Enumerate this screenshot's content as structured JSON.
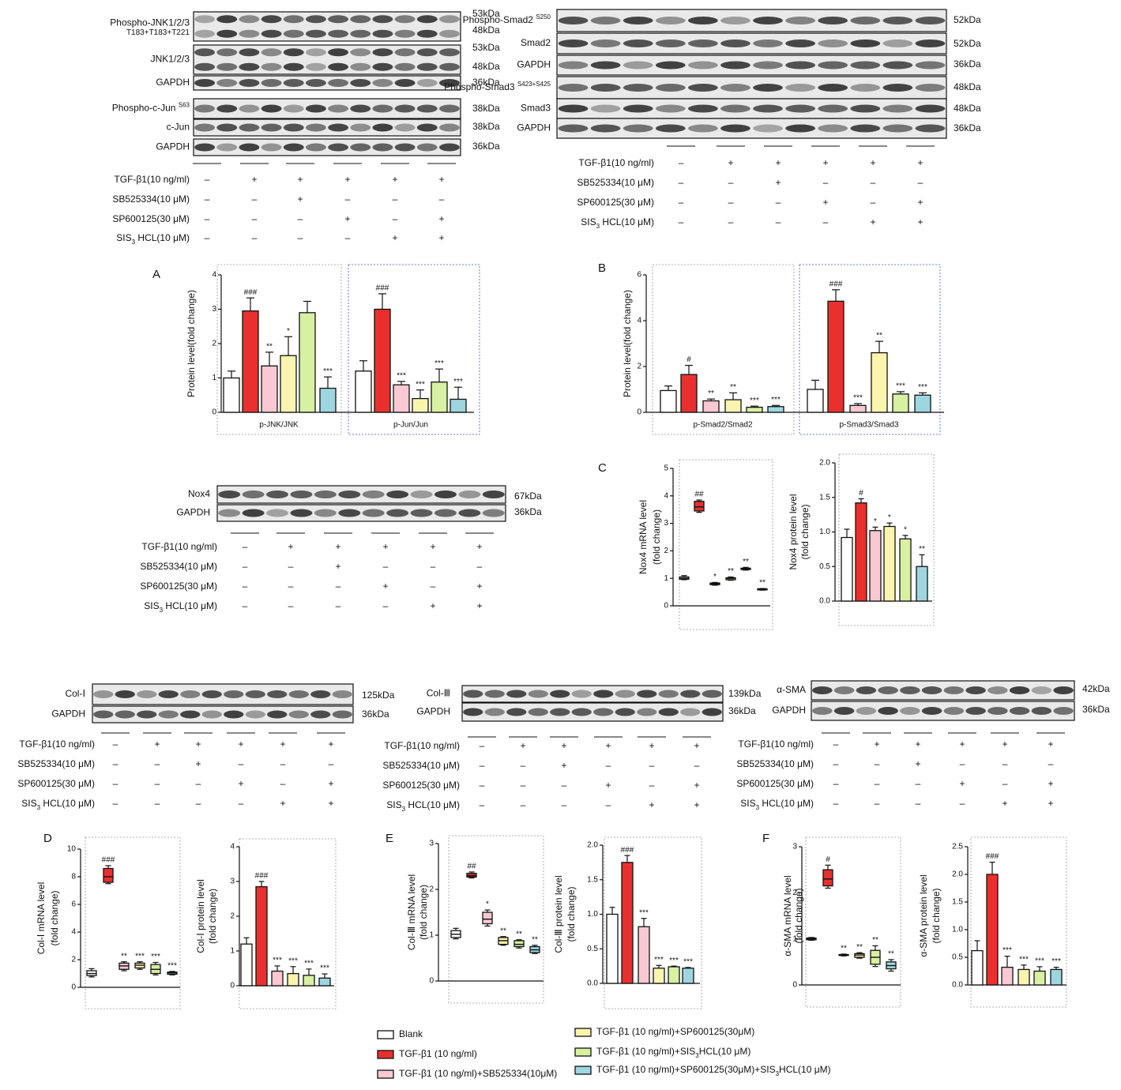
{
  "blots": [
    {
      "rows": [
        {
          "label": {
            "text": "Phospho-JNK1/2/3",
            "line2": "T183+T183+T221"
          },
          "kda": [
            "53kDa",
            "48kDa"
          ]
        },
        {
          "label": "JNK1/2/3",
          "kda": [
            "53kDa",
            "48kDa"
          ]
        },
        {
          "label": "GAPDH",
          "kda": [
            "36kDa"
          ]
        },
        {
          "label": {
            "text": "Phospho-c-Jun ",
            "sup": "S63"
          },
          "kda": [
            "38kDa"
          ]
        },
        {
          "label": "c-Jun",
          "kda": [
            "38kDa"
          ]
        },
        {
          "label": "GAPDH",
          "kda": [
            "36kDa"
          ]
        }
      ],
      "treatments": [
        {
          "label": "TGF-β1(10 ng/ml)",
          "signs": [
            "–",
            "+",
            "+",
            "+",
            "+",
            "+"
          ]
        },
        {
          "label": "SB525334(10 μM)",
          "signs": [
            "–",
            "–",
            "+",
            "–",
            "–",
            "–"
          ]
        },
        {
          "label": "SP600125(30 μM)",
          "signs": [
            "–",
            "–",
            "–",
            "+",
            "–",
            "+"
          ]
        },
        {
          "label": {
            "text": "SIS",
            "sub": "3",
            "tail": " HCL(10 μM)"
          },
          "signs": [
            "–",
            "–",
            "–",
            "–",
            "+",
            "+"
          ]
        }
      ]
    },
    {
      "rows": [
        {
          "label": {
            "text": "Phospho-Smad2 ",
            "sup": "S250"
          },
          "kda": [
            "52kDa"
          ]
        },
        {
          "label": "Smad2",
          "kda": [
            "52kDa"
          ]
        },
        {
          "label": "GAPDH",
          "kda": [
            "36kDa"
          ]
        },
        {
          "label": {
            "text": "Phospho-Smad3 ",
            "sup": "S423+S425"
          },
          "kda": [
            "48kDa"
          ]
        },
        {
          "label": "Smad3",
          "kda": [
            "48kDa"
          ]
        },
        {
          "label": "GAPDH",
          "kda": [
            "36kDa"
          ]
        }
      ],
      "treatments": [
        {
          "label": "TGF-β1(10 ng/ml)",
          "signs": [
            "–",
            "+",
            "+",
            "+",
            "+",
            "+"
          ]
        },
        {
          "label": "SB525334(10 μM)",
          "signs": [
            "–",
            "–",
            "+",
            "–",
            "–",
            "–"
          ]
        },
        {
          "label": "SP600125(30 μM)",
          "signs": [
            "–",
            "–",
            "–",
            "+",
            "–",
            "+"
          ]
        },
        {
          "label": {
            "text": "SIS",
            "sub": "3",
            "tail": " HCL(10 μM)"
          },
          "signs": [
            "–",
            "–",
            "–",
            "–",
            "+",
            "+"
          ]
        }
      ]
    },
    {
      "rows": [
        {
          "label": "Nox4",
          "kda": [
            "67kDa"
          ]
        },
        {
          "label": "GAPDH",
          "kda": [
            "36kDa"
          ]
        }
      ],
      "treatments": [
        {
          "label": "TGF-β1(10 ng/ml)",
          "signs": [
            "–",
            "+",
            "+",
            "+",
            "+",
            "+"
          ]
        },
        {
          "label": "SB525334(10 μM)",
          "signs": [
            "–",
            "–",
            "+",
            "–",
            "–",
            "–"
          ]
        },
        {
          "label": "SP600125(30 μM)",
          "signs": [
            "–",
            "–",
            "–",
            "+",
            "–",
            "+"
          ]
        },
        {
          "label": {
            "text": "SIS",
            "sub": "3",
            "tail": " HCL(10 μM)"
          },
          "signs": [
            "–",
            "–",
            "–",
            "–",
            "+",
            "+"
          ]
        }
      ]
    },
    {
      "rows": [
        {
          "label": "Col-Ⅰ",
          "kda": [
            "125kDa"
          ]
        },
        {
          "label": "GAPDH",
          "kda": [
            "36kDa"
          ]
        }
      ],
      "treatments": [
        {
          "label": "TGF-β1(10 ng/ml)",
          "signs": [
            "–",
            "+",
            "+",
            "+",
            "+",
            "+"
          ]
        },
        {
          "label": "SB525334(10 μM)",
          "signs": [
            "–",
            "–",
            "+",
            "–",
            "–",
            "–"
          ]
        },
        {
          "label": "SP600125(30 μM)",
          "signs": [
            "–",
            "–",
            "–",
            "+",
            "–",
            "+"
          ]
        },
        {
          "label": {
            "text": "SIS",
            "sub": "3",
            "tail": " HCL(10 μM)"
          },
          "signs": [
            "–",
            "–",
            "–",
            "–",
            "+",
            "+"
          ]
        }
      ]
    },
    {
      "rows": [
        {
          "label": "Col-Ⅲ",
          "kda": [
            "139kDa"
          ]
        },
        {
          "label": "GAPDH",
          "kda": [
            "36kDa"
          ]
        }
      ],
      "treatments": [
        {
          "label": "TGF-β1(10 ng/ml)",
          "signs": [
            "–",
            "+",
            "+",
            "+",
            "+",
            "+"
          ]
        },
        {
          "label": "SB525334(10 μM)",
          "signs": [
            "–",
            "–",
            "+",
            "–",
            "–",
            "–"
          ]
        },
        {
          "label": "SP600125(30 μM)",
          "signs": [
            "–",
            "–",
            "–",
            "+",
            "–",
            "+"
          ]
        },
        {
          "label": {
            "text": "SIS",
            "sub": "3",
            "tail": " HCL(10 μM)"
          },
          "signs": [
            "–",
            "–",
            "–",
            "–",
            "+",
            "+"
          ]
        }
      ]
    },
    {
      "rows": [
        {
          "label": "α-SMA",
          "kda": [
            "42kDa"
          ]
        },
        {
          "label": "GAPDH",
          "kda": [
            "36kDa"
          ]
        }
      ],
      "treatments": [
        {
          "label": "TGF-β1(10 ng/ml)",
          "signs": [
            "–",
            "+",
            "+",
            "+",
            "+",
            "+"
          ]
        },
        {
          "label": "SB525334(10 μM)",
          "signs": [
            "–",
            "–",
            "+",
            "–",
            "–",
            "–"
          ]
        },
        {
          "label": "SP600125(30 μM)",
          "signs": [
            "–",
            "–",
            "–",
            "+",
            "–",
            "+"
          ]
        },
        {
          "label": {
            "text": "SIS",
            "sub": "3",
            "tail": " HCL(10 μM)"
          },
          "signs": [
            "–",
            "–",
            "–",
            "–",
            "+",
            "+"
          ]
        }
      ]
    }
  ],
  "chart_data": [
    {
      "type": "bar",
      "panel": "A",
      "ylabel": "Protein level(fold change)",
      "ylim": [
        0,
        4
      ],
      "yticks": [
        0,
        1,
        2,
        3,
        4
      ],
      "groups": [
        {
          "label": "p-JNK/JNK",
          "values": [
            1.0,
            2.95,
            1.35,
            1.65,
            2.9,
            0.7
          ],
          "errors": [
            0.2,
            0.38,
            0.4,
            0.55,
            0.33,
            0.33
          ],
          "annotations": [
            null,
            "###",
            "**",
            "*",
            null,
            "***"
          ]
        },
        {
          "label": "p-Jun/Jun",
          "values": [
            1.2,
            3.0,
            0.8,
            0.4,
            0.88,
            0.38
          ],
          "errors": [
            0.3,
            0.45,
            0.1,
            0.25,
            0.38,
            0.35
          ],
          "annotations": [
            null,
            "###",
            "***",
            "***",
            "***",
            "***"
          ]
        }
      ]
    },
    {
      "type": "bar",
      "panel": "B",
      "ylabel": "Protein level(fold change)",
      "ylim": [
        0,
        6
      ],
      "yticks": [
        0,
        2,
        4,
        6
      ],
      "groups": [
        {
          "label": "p-Smad2/Smad2",
          "values": [
            0.95,
            1.65,
            0.5,
            0.55,
            0.22,
            0.25
          ],
          "errors": [
            0.2,
            0.4,
            0.08,
            0.3,
            0.05,
            0.05
          ],
          "annotations": [
            null,
            "#",
            "**",
            "**",
            "***",
            "***"
          ]
        },
        {
          "label": "p-Smad3/Smad3",
          "values": [
            1.0,
            4.85,
            0.3,
            2.6,
            0.8,
            0.75
          ],
          "errors": [
            0.4,
            0.5,
            0.08,
            0.5,
            0.1,
            0.1
          ],
          "annotations": [
            null,
            "###",
            "***",
            "**",
            "***",
            "***"
          ]
        }
      ]
    },
    {
      "type": "box",
      "panel": "C",
      "ylabel": [
        "Nox4 mRNA level",
        "(fold change)"
      ],
      "ylim": [
        0,
        5
      ],
      "yticks": [
        0,
        1,
        2,
        3,
        4,
        5
      ],
      "groups": [
        {
          "low": [
            0.95,
            3.4,
            0.75,
            0.93,
            1.3,
            0.57
          ],
          "q1": [
            0.97,
            3.45,
            0.77,
            0.95,
            1.32,
            0.58
          ],
          "median": [
            1.0,
            3.6,
            0.8,
            1.0,
            1.35,
            0.6
          ],
          "q3": [
            1.05,
            3.8,
            0.83,
            1.02,
            1.37,
            0.62
          ],
          "high": [
            1.1,
            3.85,
            0.85,
            1.05,
            1.4,
            0.63
          ],
          "annotations": [
            null,
            "##",
            "*",
            "**",
            "**",
            "**"
          ]
        }
      ]
    },
    {
      "type": "bar",
      "ylabel": [
        "Nox4 protein level",
        "(fold change)"
      ],
      "ylim": [
        0,
        2
      ],
      "yticks": [
        {
          "value": 0,
          "label": "0.0"
        },
        0.5,
        {
          "value": 1,
          "label": "1.0"
        },
        1.5,
        {
          "value": 2,
          "label": "2.0"
        }
      ],
      "groups": [
        {
          "values": [
            0.92,
            1.42,
            1.02,
            1.08,
            0.9,
            0.5
          ],
          "errors": [
            0.12,
            0.06,
            0.05,
            0.05,
            0.05,
            0.17
          ],
          "annotations": [
            null,
            "#",
            "*",
            "*",
            "*",
            "**"
          ]
        }
      ]
    },
    {
      "type": "box",
      "panel": "D",
      "ylabel": [
        "Col-Ⅰ mRNA level",
        "(fold change)"
      ],
      "ylim": [
        0,
        10
      ],
      "yticks": [
        0,
        2,
        4,
        6,
        8,
        10
      ],
      "groups": [
        {
          "low": [
            0.75,
            7.5,
            1.2,
            1.3,
            0.9,
            0.9
          ],
          "q1": [
            0.85,
            7.6,
            1.3,
            1.4,
            1.0,
            0.95
          ],
          "median": [
            1.0,
            8.0,
            1.55,
            1.6,
            1.3,
            1.05
          ],
          "q3": [
            1.2,
            8.6,
            1.75,
            1.75,
            1.65,
            1.1
          ],
          "high": [
            1.35,
            8.8,
            1.85,
            1.85,
            1.8,
            1.15
          ],
          "annotations": [
            null,
            "###",
            "**",
            "***",
            "***",
            "***"
          ]
        }
      ]
    },
    {
      "type": "bar",
      "ylabel": [
        "Col-Ⅰ protein level",
        "(fold change)"
      ],
      "ylim": [
        0,
        4
      ],
      "yticks": [
        0,
        1,
        2,
        3,
        4
      ],
      "groups": [
        {
          "values": [
            1.2,
            2.85,
            0.42,
            0.35,
            0.3,
            0.22
          ],
          "errors": [
            0.18,
            0.15,
            0.15,
            0.2,
            0.18,
            0.12
          ],
          "annotations": [
            null,
            "###",
            "***",
            "***",
            "***",
            "***"
          ]
        }
      ]
    },
    {
      "type": "box",
      "panel": "E",
      "ylabel": [
        "Col-Ⅲ mRNA level",
        "(fold change)"
      ],
      "ylim": [
        0,
        3
      ],
      "yticks": [
        0,
        1,
        2,
        3
      ],
      "groups": [
        {
          "low": [
            0.92,
            2.25,
            1.2,
            0.78,
            0.72,
            0.6
          ],
          "q1": [
            0.95,
            2.27,
            1.25,
            0.8,
            0.75,
            0.62
          ],
          "median": [
            1.02,
            2.3,
            1.35,
            0.88,
            0.8,
            0.68
          ],
          "q3": [
            1.1,
            2.35,
            1.5,
            0.95,
            0.88,
            0.75
          ],
          "high": [
            1.15,
            2.38,
            1.55,
            0.97,
            0.9,
            0.78
          ],
          "annotations": [
            null,
            "##",
            "*",
            "**",
            "**",
            "**"
          ]
        }
      ]
    },
    {
      "type": "bar",
      "ylabel": [
        "Col-Ⅲ protein level",
        "(fold change)"
      ],
      "ylim": [
        0,
        2
      ],
      "yticks": [
        {
          "value": 0,
          "label": "0.0"
        },
        0.5,
        {
          "value": 1,
          "label": "1.0"
        },
        1.5,
        {
          "value": 2,
          "label": "2.0"
        }
      ],
      "groups": [
        {
          "values": [
            1.0,
            1.75,
            0.82,
            0.22,
            0.24,
            0.22
          ],
          "errors": [
            0.1,
            0.1,
            0.12,
            0.04,
            0.01,
            0.01
          ],
          "annotations": [
            null,
            "###",
            "***",
            "***",
            "***",
            "***"
          ]
        }
      ]
    },
    {
      "type": "box",
      "panel": "F",
      "ylabel": [
        "α-SMA mRNA level",
        "(fold change)"
      ],
      "ylim": [
        0,
        3
      ],
      "yticks": [
        0,
        1,
        2,
        3
      ],
      "groups": [
        {
          "low": [
            0.97,
            2.1,
            0.63,
            0.58,
            0.4,
            0.3
          ],
          "q1": [
            0.98,
            2.15,
            0.64,
            0.6,
            0.45,
            0.35
          ],
          "median": [
            1.0,
            2.3,
            0.65,
            0.65,
            0.6,
            0.42
          ],
          "q3": [
            1.02,
            2.5,
            0.66,
            0.68,
            0.75,
            0.5
          ],
          "high": [
            1.03,
            2.6,
            0.67,
            0.7,
            0.85,
            0.55
          ],
          "annotations": [
            null,
            "#",
            "**",
            "**",
            "**",
            "**"
          ]
        }
      ]
    },
    {
      "type": "bar",
      "ylabel": [
        "α-SMA protein level",
        "(fold change)"
      ],
      "ylim": [
        0,
        2.5
      ],
      "yticks": [
        {
          "value": 0,
          "label": "0.0"
        },
        0.5,
        {
          "value": 1,
          "label": "1.0"
        },
        1.5,
        {
          "value": 2,
          "label": "2.0"
        },
        2.5
      ],
      "groups": [
        {
          "values": [
            0.62,
            2.0,
            0.32,
            0.28,
            0.25,
            0.28
          ],
          "errors": [
            0.18,
            0.22,
            0.2,
            0.08,
            0.08,
            0.04
          ],
          "annotations": [
            null,
            "###",
            "***",
            "***",
            "***",
            "***"
          ]
        }
      ]
    }
  ],
  "legend": [
    {
      "name": "Blank",
      "color": "#ffffff"
    },
    {
      "name": "TGF-β1 (10 ng/ml)",
      "color": "#e8302e"
    },
    {
      "name": "TGF-β1 (10 ng/ml)+SB525334(10μM)",
      "color": "#f9c8d2"
    },
    {
      "name": "TGF-β1 (10 ng/ml)+SP600125(30μM)",
      "color": "#fbf4ae"
    },
    {
      "name": {
        "text": "TGF-β1 (10 ng/ml)+SIS",
        "sub": "3",
        "tail": "HCL(10 μM)"
      },
      "color": "#d8f0a2"
    },
    {
      "name": {
        "text": "TGF-β1 (10 ng/ml)+SP600125(30μM)+SIS",
        "sub": "3",
        "tail": "HCL(10 μM)"
      },
      "color": "#9ed6df"
    }
  ]
}
